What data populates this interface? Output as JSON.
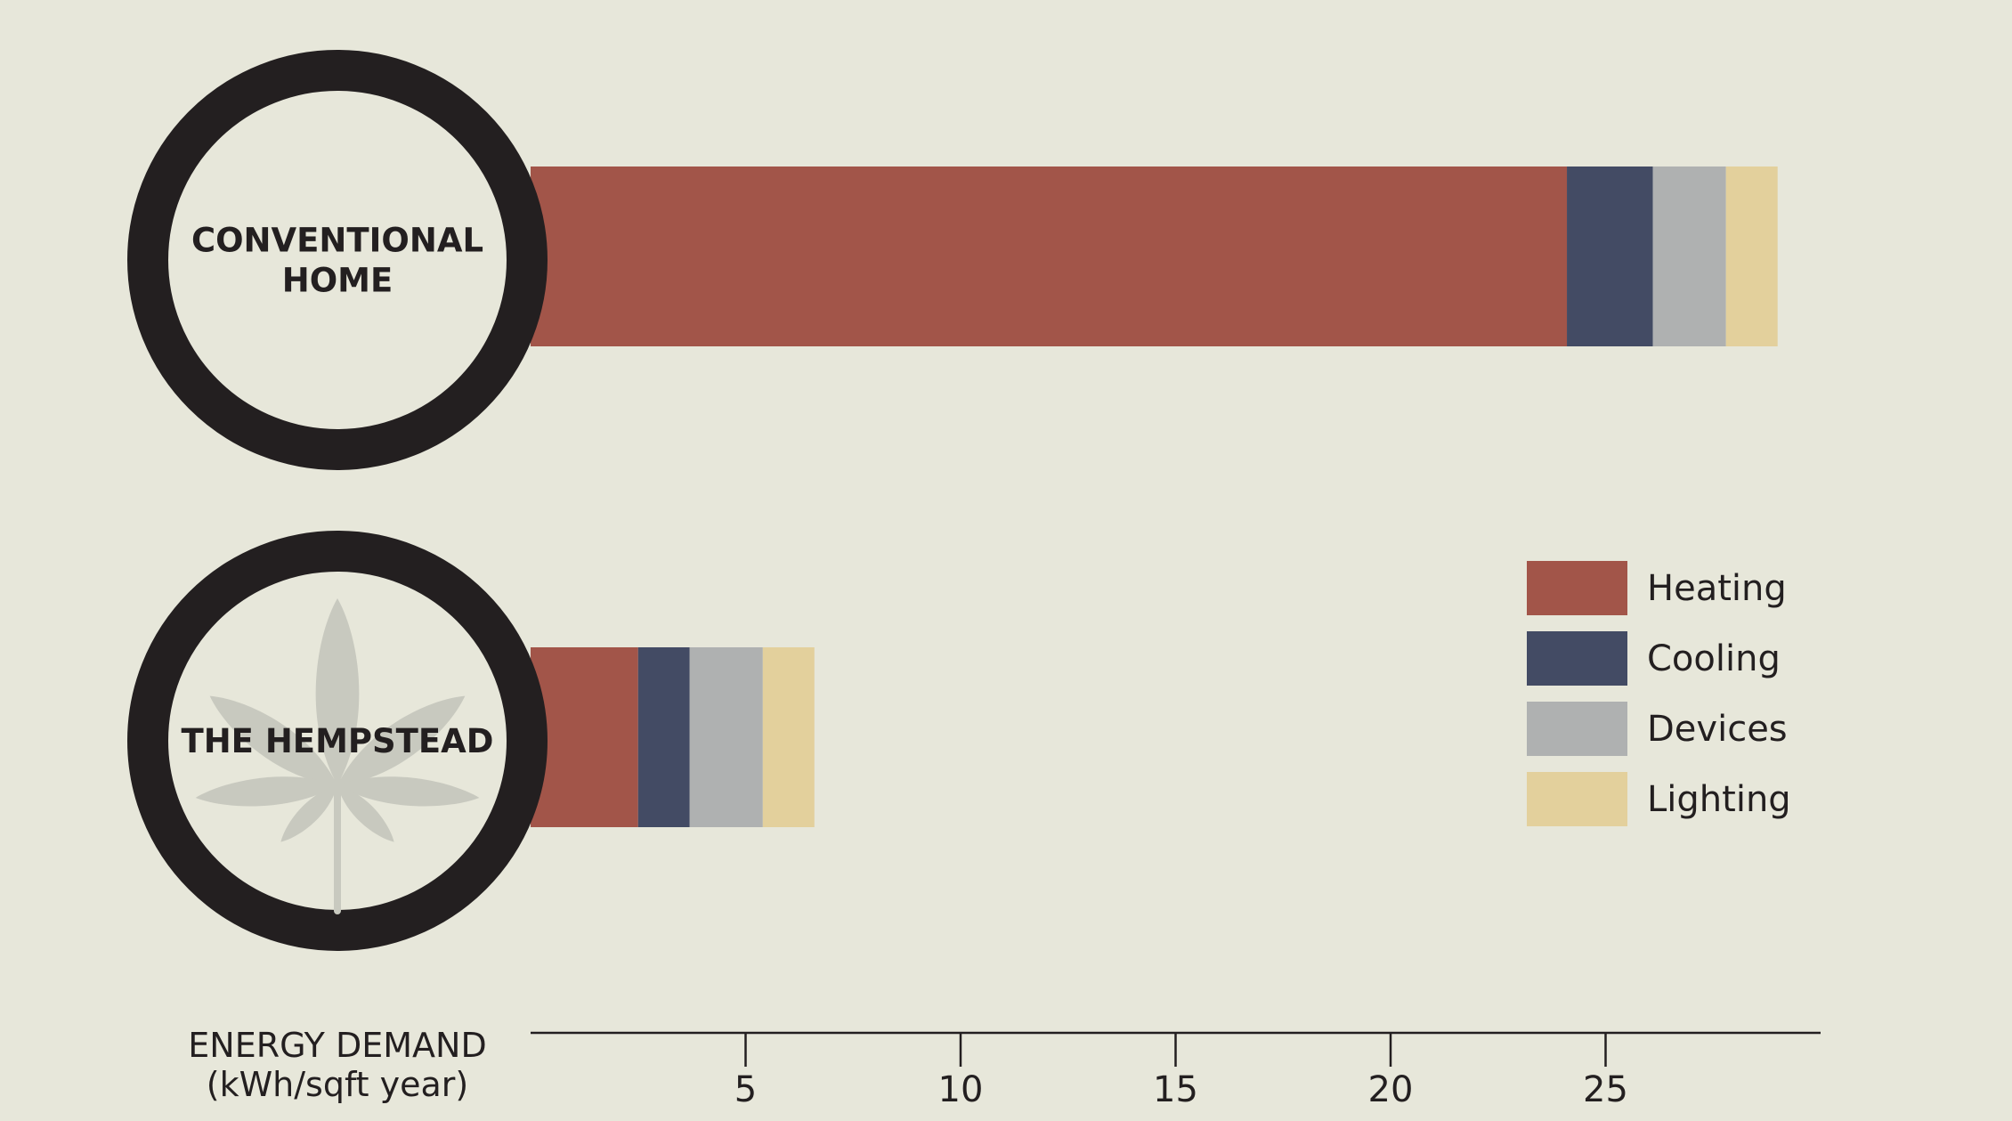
{
  "chart_data": {
    "type": "bar",
    "orientation": "horizontal",
    "stacked": true,
    "categories": [
      "CONVENTIONAL HOME",
      "THE HEMPSTEAD"
    ],
    "category_label_lines": [
      [
        "CONVENTIONAL",
        "HOME"
      ],
      [
        "THE HEMPSTEAD"
      ]
    ],
    "series": [
      {
        "name": "Heating",
        "color": "#a25549",
        "values": [
          24.1,
          2.5
        ]
      },
      {
        "name": "Cooling",
        "color": "#434b64",
        "values": [
          2.0,
          1.2
        ]
      },
      {
        "name": "Devices",
        "color": "#afb1b1",
        "values": [
          1.7,
          1.7
        ]
      },
      {
        "name": "Lighting",
        "color": "#e3d09c",
        "values": [
          1.2,
          1.2
        ]
      }
    ],
    "xlabel": [
      "ENERGY DEMAND",
      "(kWh/sqft year)"
    ],
    "xticks": [
      5,
      10,
      15,
      20,
      25
    ],
    "xlim": [
      0,
      30
    ],
    "legend_position": "right",
    "icons": [
      "hemp-leaf-icon"
    ]
  }
}
